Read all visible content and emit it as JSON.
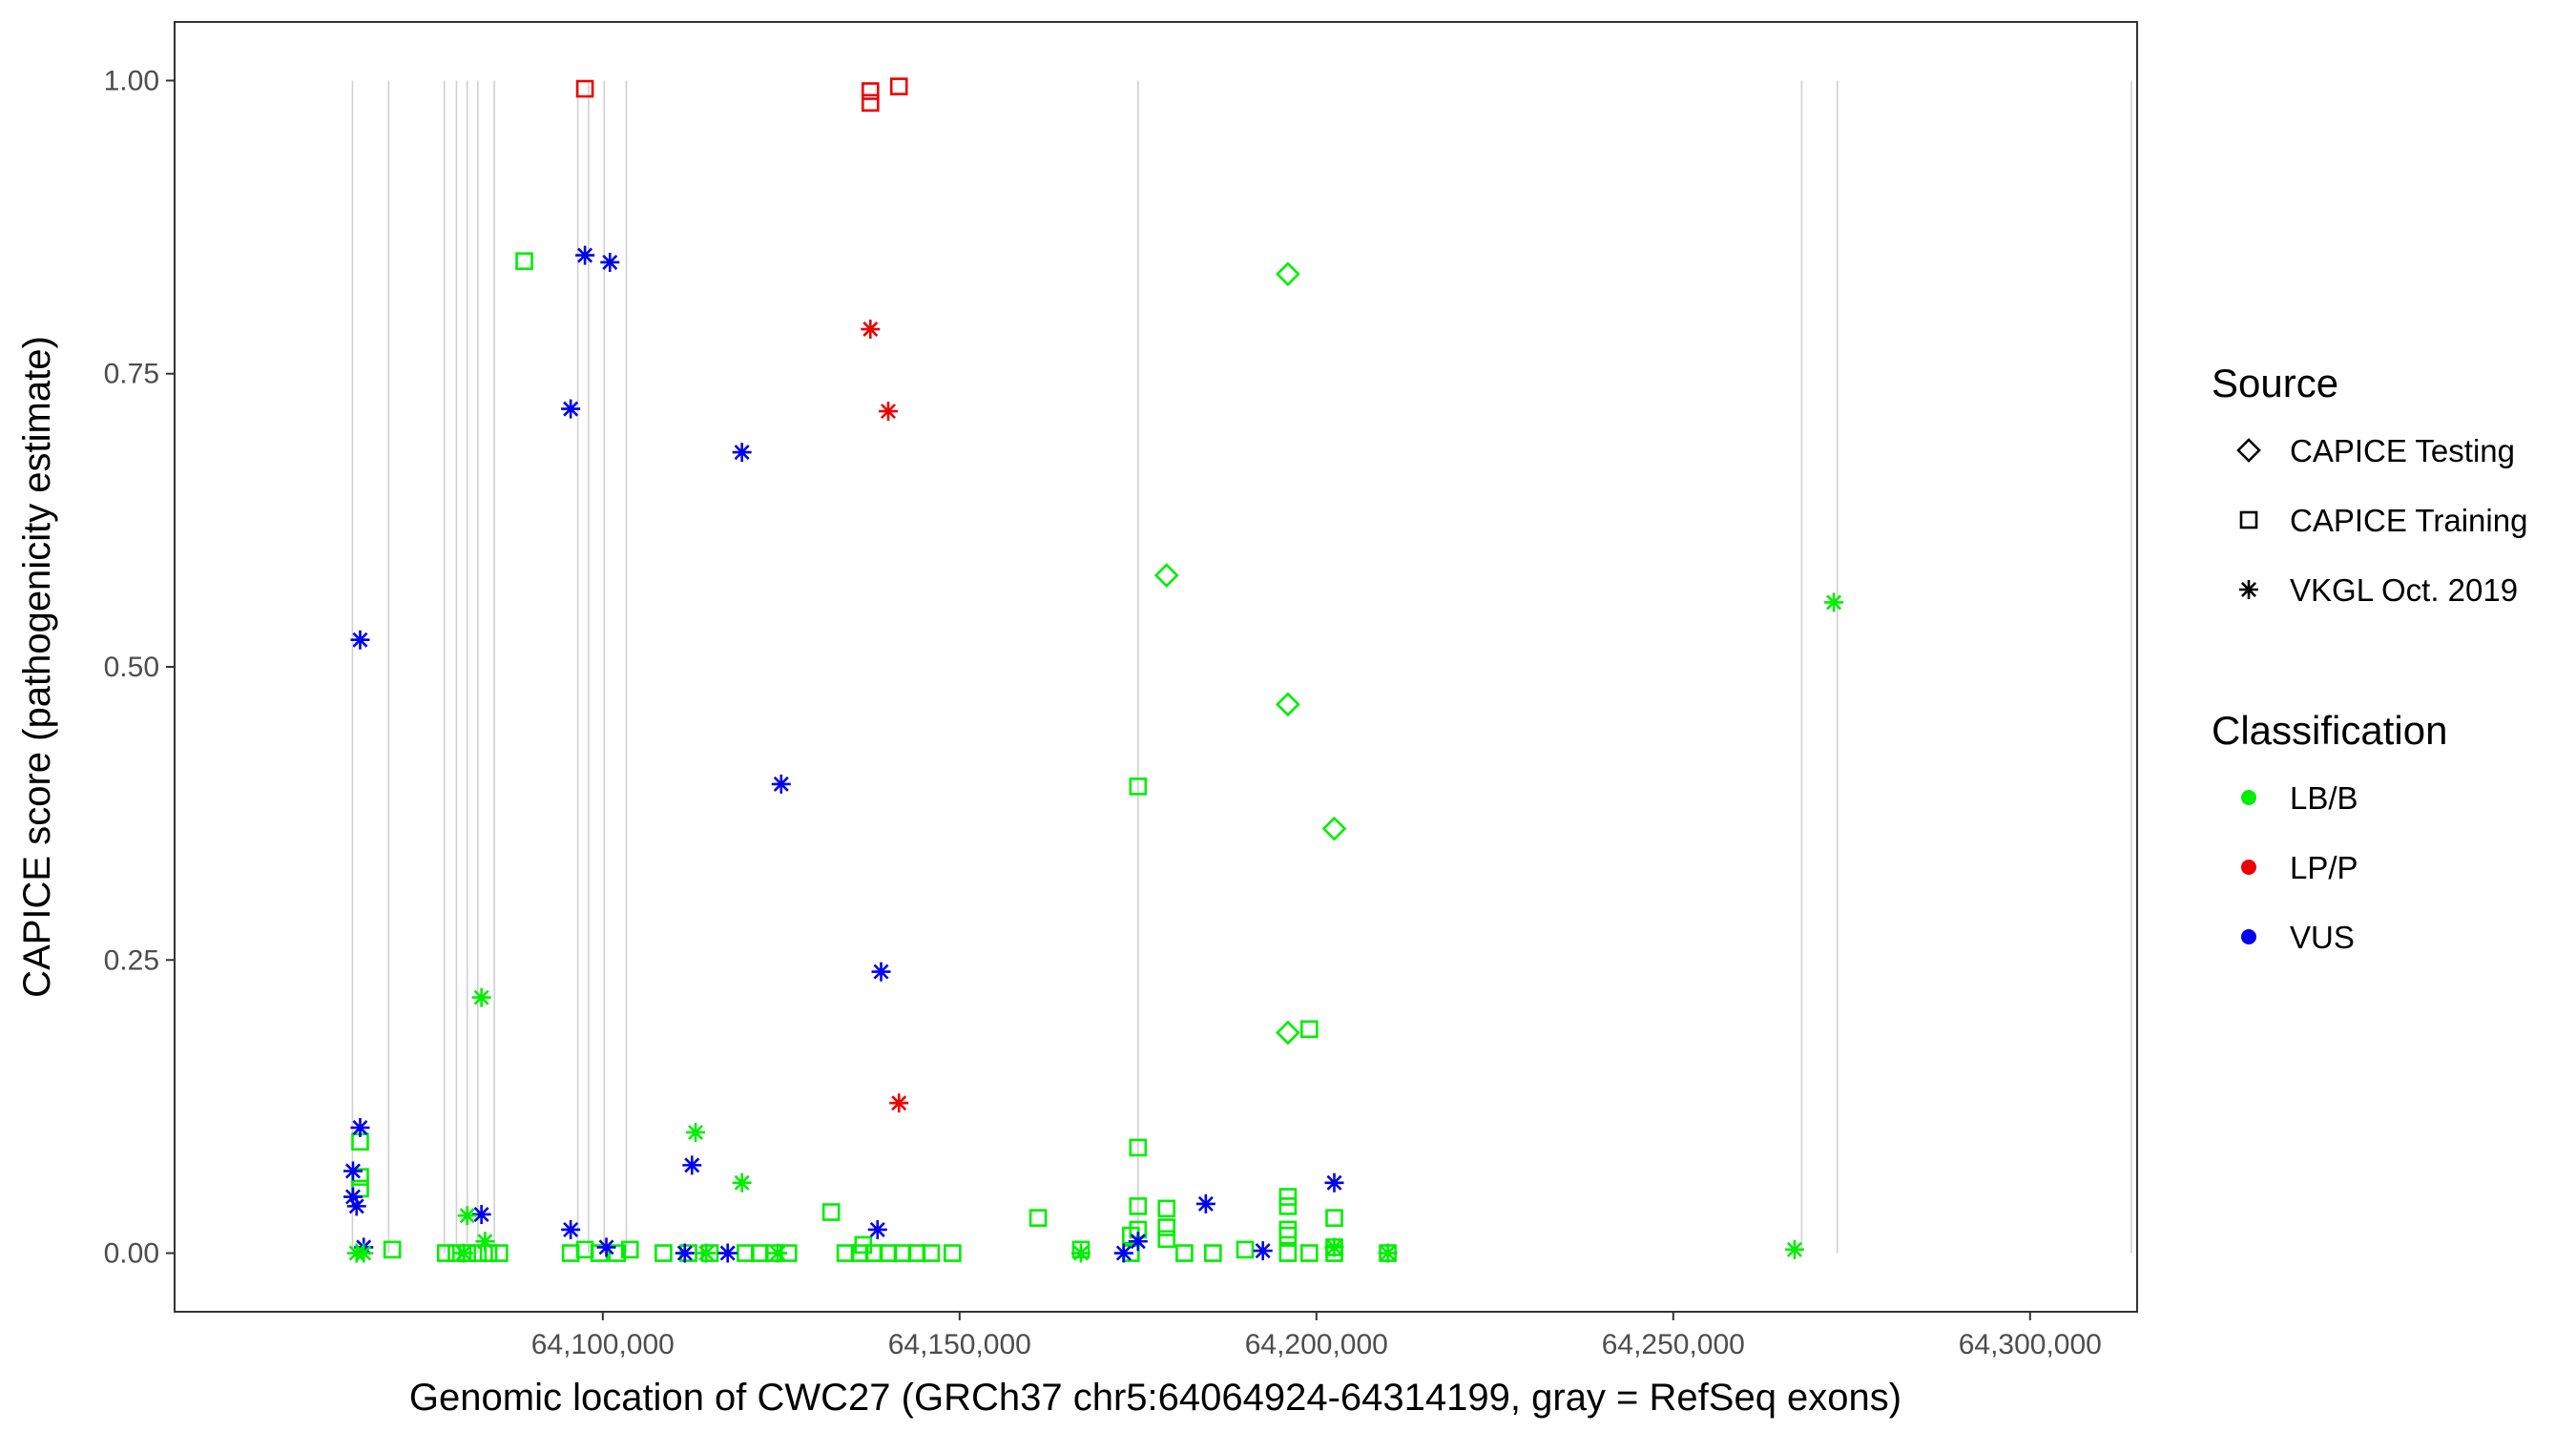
{
  "chart_data": {
    "type": "scatter",
    "xlabel": "Genomic location of CWC27 (GRCh37 chr5:64064924-64314199, gray = RefSeq exons)",
    "ylabel": "CAPICE score (pathogenicity estimate)",
    "xlim": [
      64040000,
      64315000
    ],
    "ylim": [
      -0.05,
      1.05
    ],
    "x_ticks": [
      64100000,
      64150000,
      64200000,
      64250000,
      64300000
    ],
    "x_tick_labels": [
      "64,100,000",
      "64,150,000",
      "64,200,000",
      "64,250,000",
      "64,300,000"
    ],
    "y_ticks": [
      0,
      0.25,
      0.5,
      0.75,
      1.0
    ],
    "y_tick_labels": [
      "0.00",
      "0.25",
      "0.50",
      "0.75",
      "1.00"
    ],
    "grid": false,
    "legend_position": "right",
    "exon_lines": [
      64064924,
      64070000,
      64077800,
      64079500,
      64081000,
      64082500,
      64084800,
      64096500,
      64098000,
      64100200,
      64103300,
      64175000,
      64268000,
      64273000,
      64314199
    ],
    "legends": [
      {
        "title": "Source",
        "entries": [
          {
            "label": "CAPICE Testing",
            "shape": "diamond"
          },
          {
            "label": "CAPICE Training",
            "shape": "square"
          },
          {
            "label": "VKGL Oct. 2019",
            "shape": "asterisk"
          }
        ]
      },
      {
        "title": "Classification",
        "entries": [
          {
            "label": "LB/B",
            "color": "#00ee00"
          },
          {
            "label": "LP/P",
            "color": "#ee0000"
          },
          {
            "label": "VUS",
            "color": "#0000ee"
          }
        ]
      }
    ],
    "series": [
      {
        "source": "CAPICE Testing",
        "classification": "LB/B",
        "x": [
          64179000,
          64196000,
          64196000,
          64202500,
          64196000
        ],
        "y": [
          0.578,
          0.835,
          0.468,
          0.362,
          0.188
        ]
      },
      {
        "source": "CAPICE Training",
        "classification": "LP/P",
        "x": [
          64097500,
          64137500,
          64137500,
          64141500
        ],
        "y": [
          0.993,
          0.981,
          0.991,
          0.995
        ]
      },
      {
        "source": "CAPICE Training",
        "classification": "LB/B",
        "x": [
          64089000,
          64175000,
          64199000,
          64175000,
          64066000,
          64066000,
          64066000,
          64070500,
          64078000,
          64079500,
          64081000,
          64082500,
          64084000,
          64085500,
          64095500,
          64097500,
          64099500,
          64102000,
          64103800,
          64108500,
          64112000,
          64115000,
          64120000,
          64122000,
          64124000,
          64126000,
          64132000,
          64134000,
          64136000,
          64138000,
          64140000,
          64142000,
          64144000,
          64146000,
          64149000,
          64161000,
          64167000,
          64174000,
          64175000,
          64175000,
          64179000,
          64179000,
          64179000,
          64181500,
          64185500,
          64190000,
          64196000,
          64196000,
          64196000,
          64196000,
          64196000,
          64199000,
          64202500,
          64202500,
          64202500,
          64210000,
          64174000,
          64136500
        ],
        "y": [
          0.846,
          0.398,
          0.191,
          0.09,
          0.095,
          0.065,
          0.055,
          0.003,
          0.0,
          0.0,
          0.0,
          0.0,
          0.0,
          0.0,
          0.0,
          0.003,
          0.0,
          0.0,
          0.003,
          0.0,
          0.0,
          0.0,
          0.0,
          0.0,
          0.0,
          0.0,
          0.035,
          0.0,
          0.0,
          0.0,
          0.0,
          0.0,
          0.0,
          0.0,
          0.0,
          0.03,
          0.003,
          0.0,
          0.04,
          0.02,
          0.038,
          0.022,
          0.012,
          0.0,
          0.0,
          0.003,
          0.048,
          0.04,
          0.02,
          0.015,
          0.0,
          0.0,
          0.03,
          0.005,
          0.0,
          0.0,
          0.015,
          0.007
        ]
      },
      {
        "source": "VKGL Oct. 2019",
        "classification": "LP/P",
        "x": [
          64137500,
          64140000,
          64141500
        ],
        "y": [
          0.788,
          0.718,
          0.128
        ]
      },
      {
        "source": "VKGL Oct. 2019",
        "classification": "VUS",
        "x": [
          64097500,
          64101000,
          64095500,
          64119500,
          64066000,
          64125000,
          64139000,
          64066000,
          64112500,
          64065000,
          64065000,
          64065500,
          64083000,
          64184500,
          64202500,
          64095500,
          64138500,
          64175000,
          64066500,
          64100500,
          64111500,
          64117500,
          64173000,
          64192500
        ],
        "y": [
          0.851,
          0.845,
          0.72,
          0.683,
          0.523,
          0.4,
          0.24,
          0.107,
          0.075,
          0.07,
          0.048,
          0.04,
          0.033,
          0.042,
          0.06,
          0.02,
          0.02,
          0.01,
          0.005,
          0.005,
          0.0,
          0.0,
          0.0,
          0.002
        ]
      },
      {
        "source": "VKGL Oct. 2019",
        "classification": "LB/B",
        "x": [
          64272500,
          64083000,
          64113000,
          64119500,
          64081000,
          64083500,
          64065500,
          64066500,
          64080500,
          64114500,
          64124500,
          64167000,
          64267000,
          64210000,
          64202500
        ],
        "y": [
          0.555,
          0.218,
          0.103,
          0.06,
          0.032,
          0.01,
          0.0,
          0.0,
          0.0,
          0.0,
          0.0,
          0.0,
          0.003,
          0.0,
          0.005
        ]
      }
    ]
  }
}
